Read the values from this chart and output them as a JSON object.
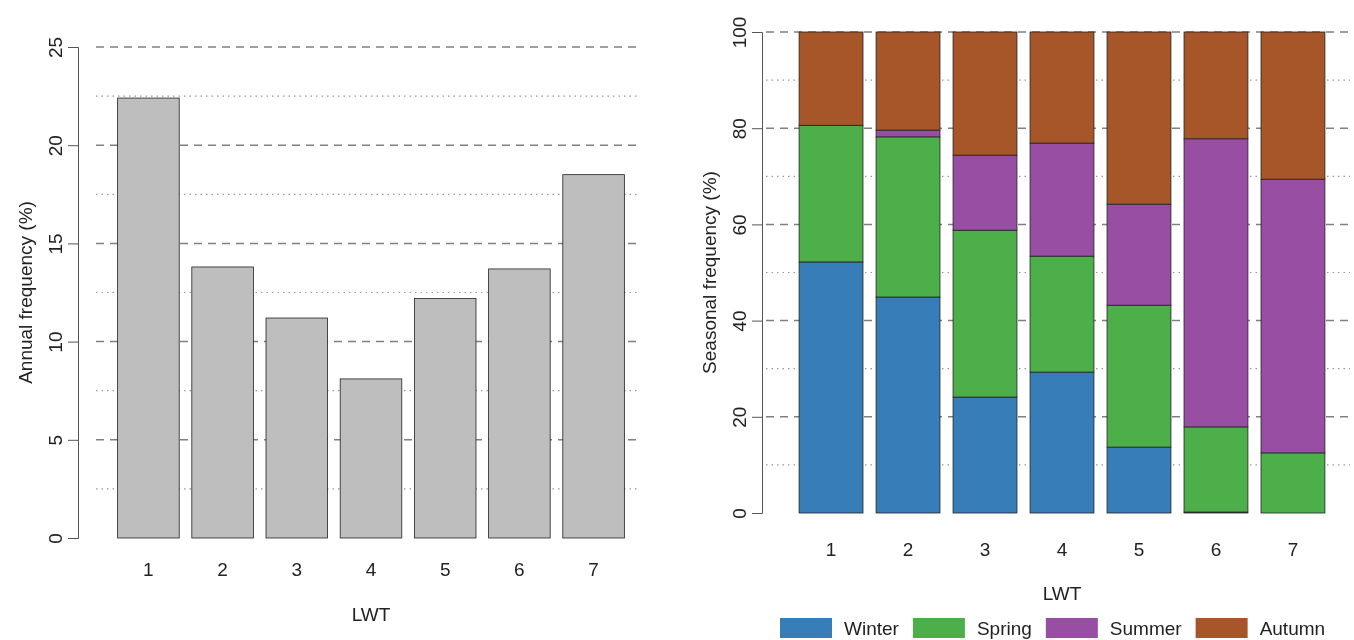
{
  "chart_data": [
    {
      "type": "bar",
      "categories": [
        "1",
        "2",
        "3",
        "4",
        "5",
        "6",
        "7"
      ],
      "values": [
        22.4,
        13.8,
        11.2,
        8.1,
        12.2,
        13.7,
        18.5
      ],
      "color": "#bebebe",
      "xlabel": "LWT",
      "ylabel": "Annual frequency (%)",
      "ylim": [
        0,
        25
      ],
      "yticks": [
        0,
        5,
        10,
        15,
        20,
        25
      ],
      "grid": "y"
    },
    {
      "type": "bar",
      "stacked": true,
      "categories": [
        "1",
        "2",
        "3",
        "4",
        "5",
        "6",
        "7"
      ],
      "xlabel": "LWT",
      "ylabel": "Seasonal frequency (%)",
      "ylim": [
        0,
        100
      ],
      "yticks": [
        0,
        20,
        40,
        60,
        80,
        100
      ],
      "grid": "y",
      "legend": "bottom",
      "series": [
        {
          "name": "Winter",
          "color": "#377eb8",
          "values": [
            52.2,
            44.9,
            24.1,
            29.3,
            13.7,
            0.2,
            0
          ]
        },
        {
          "name": "Spring",
          "color": "#4daf4a",
          "values": [
            28.4,
            33.3,
            34.7,
            24.1,
            29.5,
            17.7,
            12.5
          ]
        },
        {
          "name": "Summer",
          "color": "#984ea3",
          "values": [
            null,
            1.4,
            15.6,
            23.5,
            21.0,
            59.9,
            56.9
          ]
        },
        {
          "name": "Autumn",
          "color": "#a65628",
          "values": [
            19.4,
            20.4,
            25.6,
            23.1,
            35.8,
            22.2,
            30.6
          ]
        }
      ]
    }
  ]
}
